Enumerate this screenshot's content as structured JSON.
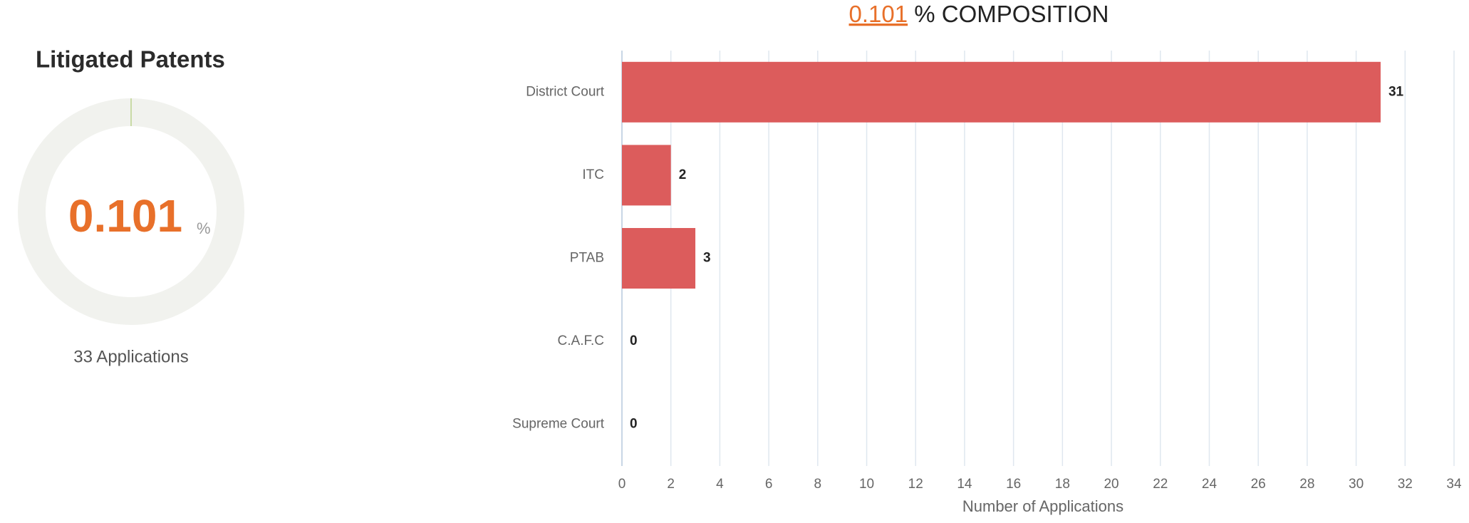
{
  "gauge": {
    "title": "Litigated Patents",
    "value": 0.101,
    "unit": "%",
    "caption": "33 Applications",
    "color": "#e8702a",
    "arc_color": "#c9dba6",
    "track_color": "#f1f2ee"
  },
  "chart_data": {
    "type": "bar",
    "orientation": "horizontal",
    "title": "% COMPOSITION",
    "categories": [
      "District Court",
      "ITC",
      "PTAB",
      "C.A.F.C",
      "Supreme Court"
    ],
    "values": [
      31,
      2,
      3,
      0,
      0
    ],
    "color": "#dc5c5c",
    "xlabel": "Number of Applications",
    "xlim": [
      0,
      34
    ],
    "xticks": [
      0,
      2,
      4,
      6,
      8,
      10,
      12,
      14,
      16,
      18,
      20,
      22,
      24,
      26,
      28,
      30,
      32,
      34
    ],
    "grid": true
  }
}
